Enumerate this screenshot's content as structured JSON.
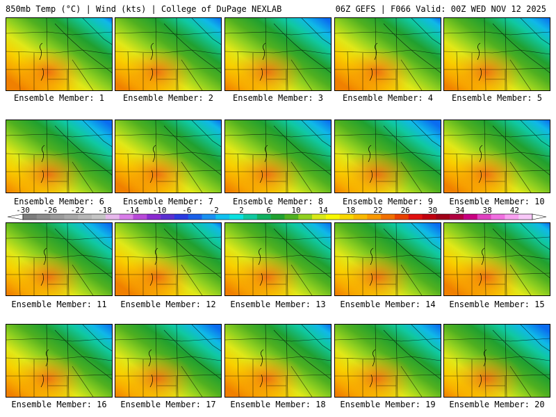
{
  "header": {
    "left": "850mb Temp (°C) | Wind (kts) | College of DuPage NEXLAB",
    "right": "06Z GEFS | F066 Valid: 00Z WED NOV 12 2025"
  },
  "member_prefix": "Ensemble Member: ",
  "members": [
    "Ensemble Member: 1",
    "Ensemble Member: 2",
    "Ensemble Member: 3",
    "Ensemble Member: 4",
    "Ensemble Member: 5",
    "Ensemble Member: 6",
    "Ensemble Member: 7",
    "Ensemble Member: 8",
    "Ensemble Member: 9",
    "Ensemble Member: 10",
    "Ensemble Member: 11",
    "Ensemble Member: 12",
    "Ensemble Member: 13",
    "Ensemble Member: 14",
    "Ensemble Member: 15",
    "Ensemble Member: 16",
    "Ensemble Member: 17",
    "Ensemble Member: 18",
    "Ensemble Member: 19",
    "Ensemble Member: 20"
  ],
  "colorbar": {
    "labels": [
      "-30",
      "-26",
      "-22",
      "-18",
      "-14",
      "-10",
      "-6",
      "-2",
      "2",
      "6",
      "10",
      "14",
      "18",
      "22",
      "26",
      "30",
      "34",
      "38",
      "42"
    ],
    "colors": [
      "#7d7d7d",
      "#8c8c8c",
      "#9a9a9a",
      "#a8a8a8",
      "#b6b6b6",
      "#c4c4c4",
      "#e7b8ec",
      "#d87ee8",
      "#b84ad8",
      "#8a2ad0",
      "#5a2fd0",
      "#2a3ae0",
      "#1a60e8",
      "#1a90f0",
      "#10c0f0",
      "#0ae0e0",
      "#10c8a0",
      "#10b060",
      "#20a030",
      "#50b020",
      "#90d020",
      "#d8e818",
      "#f8f800",
      "#f8d800",
      "#f8b800",
      "#f89800",
      "#f07000",
      "#e84000",
      "#e01010",
      "#c00010",
      "#a00018",
      "#b00040",
      "#c80080",
      "#e040c0",
      "#f070e0",
      "#f8a0f0",
      "#f8c8f8"
    ]
  }
}
